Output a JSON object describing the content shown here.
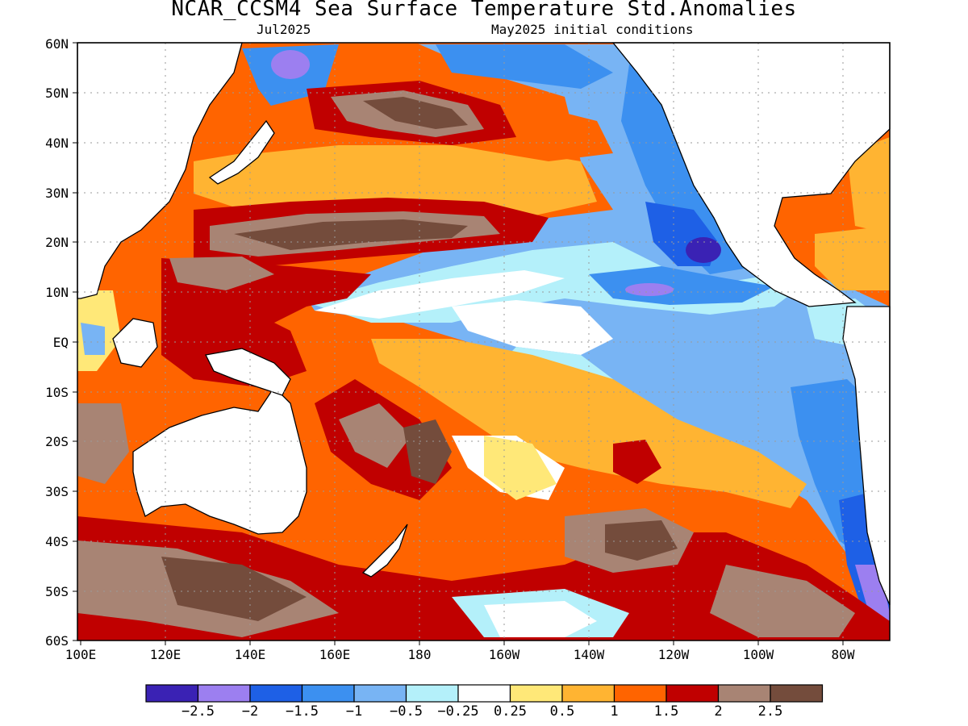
{
  "header": {
    "title": "NCAR_CCSM4 Sea Surface Temperature Std.Anomalies",
    "valid_month": "Jul2025",
    "init": "May2025 initial conditions"
  },
  "axes": {
    "lat_labels": [
      "60N",
      "50N",
      "40N",
      "30N",
      "20N",
      "10N",
      "EQ",
      "10S",
      "20S",
      "30S",
      "40S",
      "50S",
      "60S"
    ],
    "lon_labels": [
      "100E",
      "120E",
      "140E",
      "160E",
      "180",
      "160W",
      "140W",
      "120W",
      "100W",
      "80W"
    ]
  },
  "colorbar": {
    "colors": [
      "#3a22b4",
      "#9c7ff0",
      "#1e60e6",
      "#3c90f0",
      "#78b4f4",
      "#b4f0fa",
      "#ffffff",
      "#ffe878",
      "#ffb432",
      "#ff6400",
      "#c00000",
      "#a88474",
      "#744c3c"
    ],
    "labels": [
      "−2.5",
      "−2",
      "−1.5",
      "−1",
      "−0.5",
      "−0.25",
      "0.25",
      "0.5",
      "1",
      "1.5",
      "2",
      "2.5"
    ]
  },
  "colors": {
    "land": "#ffffff",
    "coast": "#000000",
    "grid": "#9a9a9a"
  }
}
